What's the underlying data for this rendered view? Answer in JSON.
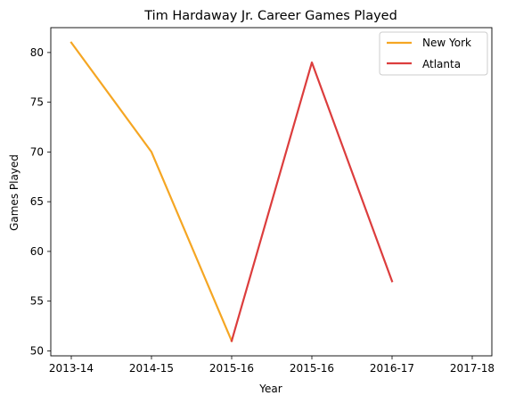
{
  "chart_data": {
    "type": "line",
    "title": "Tim Hardaway Jr. Career Games Played",
    "xlabel": "Year",
    "ylabel": "Games Played",
    "x_tick_labels": [
      "2013-14",
      "2014-15",
      "2015-16",
      "2015-16",
      "2016-17",
      "2017-18"
    ],
    "ylim": [
      49.5,
      82.5
    ],
    "y_ticks": [
      50,
      55,
      60,
      65,
      70,
      75,
      80
    ],
    "grid": false,
    "legend_position": "top-right",
    "series": [
      {
        "name": "New York",
        "color": "#f5a623",
        "points": [
          {
            "x": 0.0,
            "y": 81
          },
          {
            "x": 1.0,
            "y": 70
          },
          {
            "x": 2.0,
            "y": 51
          }
        ]
      },
      {
        "name": "Atlanta",
        "color": "#dc3d3d",
        "points": [
          {
            "x": 2.0,
            "y": 51
          },
          {
            "x": 3.0,
            "y": 79
          },
          {
            "x": 4.0,
            "y": 57
          }
        ]
      }
    ]
  }
}
